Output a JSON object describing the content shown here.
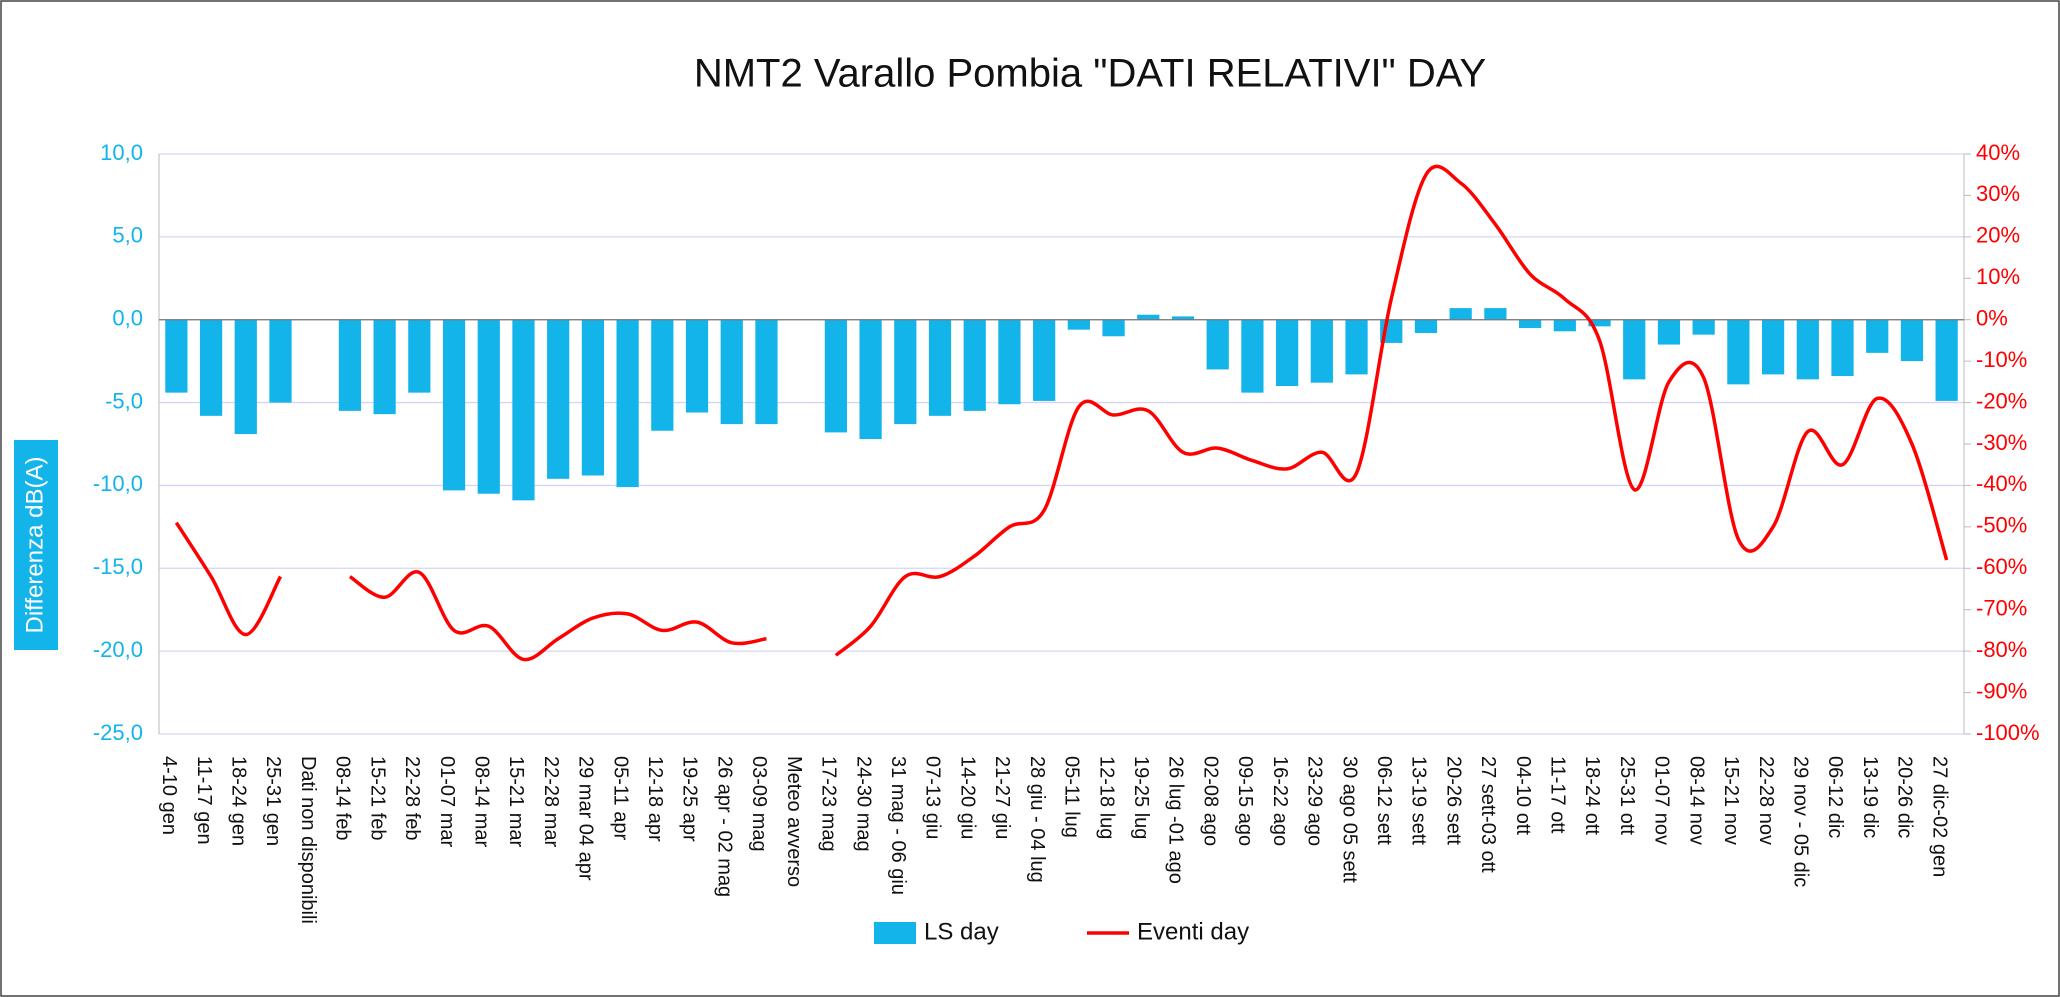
{
  "chart_data": {
    "type": "combo",
    "title": "NMT2 Varallo Pombia \"DATI RELATIVI\" DAY",
    "y_label": "Differenza dB(A)",
    "categories": [
      "4-10 gen",
      "11-17 gen",
      "18-24 gen",
      "25-31 gen",
      "Dati non disponibili",
      "08-14 feb",
      "15-21 feb",
      "22-28 feb",
      "01-07 mar",
      "08-14 mar",
      "15-21 mar",
      "22-28 mar",
      "29 mar 04 apr",
      "05-11 apr",
      "12-18 apr",
      "19-25 apr",
      "26 apr - 02 mag",
      "03-09 mag",
      "Meteo avverso",
      "17-23 mag",
      "24-30 mag",
      "31 mag - 06 giu",
      "07-13 giu",
      "14-20 giu",
      "21-27 giu",
      "28 giu - 04 lug",
      "05-11 lug",
      "12-18 lug",
      "19-25 lug",
      "26 lug -01 ago",
      "02-08 ago",
      "09-15 ago",
      "16-22 ago",
      "23-29 ago",
      "30 ago 05 sett",
      "06-12  sett",
      "13-19 sett",
      "20-26 sett",
      "27 sett-03 ott",
      "04-10 ott",
      "11-17 ott",
      "18-24 ott",
      "25-31 ott",
      "01-07 nov",
      "08-14 nov",
      "15-21 nov",
      "22-28 nov",
      "29 nov - 05 dic",
      "06-12 dic",
      "13-19 dic",
      "20-26 dic",
      "27 dic-02 gen"
    ],
    "series": [
      {
        "name": "LS day",
        "type": "bar",
        "color": "#12b4ea",
        "values": [
          -4.4,
          -5.8,
          -6.9,
          -5.0,
          null,
          -5.5,
          -5.7,
          -4.4,
          -10.3,
          -10.5,
          -10.9,
          -9.6,
          -9.4,
          -10.1,
          -6.7,
          -5.6,
          -6.3,
          -6.3,
          null,
          -6.8,
          -7.2,
          -6.3,
          -5.8,
          -5.5,
          -5.1,
          -4.9,
          -0.6,
          -1.0,
          0.3,
          0.2,
          -3.0,
          -4.4,
          -4.0,
          -3.8,
          -3.3,
          -1.4,
          -0.8,
          0.7,
          0.7,
          -0.5,
          -0.7,
          -0.4,
          -3.6,
          -1.5,
          -0.9,
          -3.9,
          -3.3,
          -3.6,
          -3.4,
          -2.0,
          -2.5,
          -4.9
        ]
      },
      {
        "name": "Eventi day",
        "type": "line",
        "axis": "y2",
        "color": "#ff0000",
        "values": [
          -49,
          -62,
          -76,
          -62,
          null,
          -62,
          -67,
          -61,
          -75,
          -74,
          -82,
          -77,
          -72,
          -71,
          -75,
          -73,
          -78,
          -77,
          null,
          -81,
          -74,
          -62,
          -62,
          -57,
          -50,
          -46,
          -21,
          -23,
          -22,
          -32,
          -31,
          -34,
          -36,
          -32,
          -37,
          5,
          35,
          33,
          23,
          11,
          5,
          -5,
          -41,
          -15,
          -14,
          -53,
          -50,
          -27,
          -35,
          -19,
          -30,
          -58
        ]
      }
    ],
    "ylim": [
      -25,
      10
    ],
    "yticks": [
      {
        "value": 10,
        "label": "10,0"
      },
      {
        "value": 5,
        "label": "5,0"
      },
      {
        "value": 0,
        "label": "0,0"
      },
      {
        "value": -5,
        "label": "-5,0"
      },
      {
        "value": -10,
        "label": "-10,0"
      },
      {
        "value": -15,
        "label": "-15,0"
      },
      {
        "value": -20,
        "label": "-20,0"
      },
      {
        "value": -25,
        "label": "-25,0"
      }
    ],
    "y2lim": [
      -100,
      40
    ],
    "y2ticks": [
      {
        "value": 40,
        "label": "40%"
      },
      {
        "value": 30,
        "label": "30%"
      },
      {
        "value": 20,
        "label": "20%"
      },
      {
        "value": 10,
        "label": "10%"
      },
      {
        "value": 0,
        "label": "0%"
      },
      {
        "value": -10,
        "label": "-10%"
      },
      {
        "value": -20,
        "label": "-20%"
      },
      {
        "value": -30,
        "label": "-30%"
      },
      {
        "value": -40,
        "label": "-40%"
      },
      {
        "value": -50,
        "label": "-50%"
      },
      {
        "value": -60,
        "label": "-60%"
      },
      {
        "value": -70,
        "label": "-70%"
      },
      {
        "value": -80,
        "label": "-80%"
      },
      {
        "value": -90,
        "label": "-90%"
      },
      {
        "value": -100,
        "label": "-100%"
      }
    ],
    "grid": true,
    "legend": "bottom"
  }
}
